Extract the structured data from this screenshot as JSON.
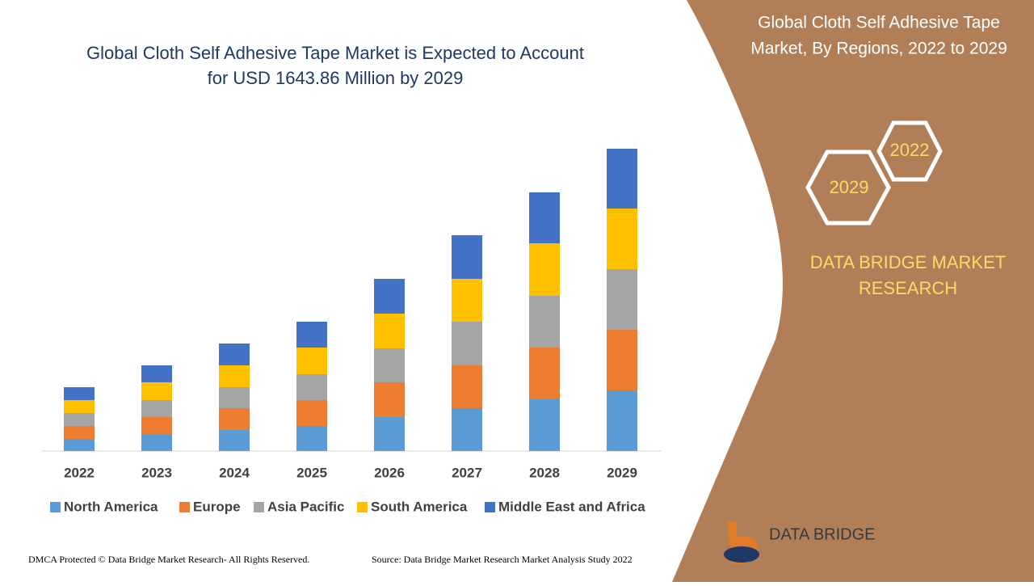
{
  "chart_data": {
    "type": "stacked_bar",
    "title": [
      "Global Cloth Self Adhesive Tape Market is Expected to Account",
      "for USD 1643.86 Million by 2029"
    ],
    "categories": [
      "2022",
      "2023",
      "2024",
      "2025",
      "2026",
      "2027",
      "2028",
      "2029"
    ],
    "series": [
      {
        "name": "North America",
        "color": "#5b9bd5",
        "values": [
          15,
          20,
          26,
          31,
          42,
          53,
          64,
          75
        ]
      },
      {
        "name": "Europe",
        "color": "#ed7d31",
        "values": [
          16,
          22,
          27,
          32,
          43,
          53,
          64,
          75
        ]
      },
      {
        "name": "Asia Pacific",
        "color": "#a5a5a5",
        "values": [
          16,
          21,
          26,
          32,
          42,
          54,
          64,
          75
        ]
      },
      {
        "name": "South America",
        "color": "#ffc000",
        "values": [
          16,
          22,
          27,
          33,
          43,
          53,
          65,
          75
        ]
      },
      {
        "name": "Middle East and Africa",
        "color": "#4472c4",
        "values": [
          16,
          21,
          27,
          32,
          43,
          54,
          63,
          74
        ]
      }
    ],
    "ylim": [
      0,
      400
    ]
  },
  "panel": {
    "title": [
      "Global Cloth Self Adhesive Tape",
      "Market, By Regions, 2022 to 2029"
    ],
    "hex_back": "2022",
    "hex_front": "2029",
    "brand": [
      "DATA BRIDGE MARKET",
      "RESEARCH"
    ]
  },
  "logo": {
    "name": "DATA BRIDGE"
  },
  "footer": {
    "left": "DMCA Protected © Data Bridge Market Research- All Rights Reserved.",
    "right": "Source: Data Bridge Market Research Market Analysis Study 2022"
  }
}
